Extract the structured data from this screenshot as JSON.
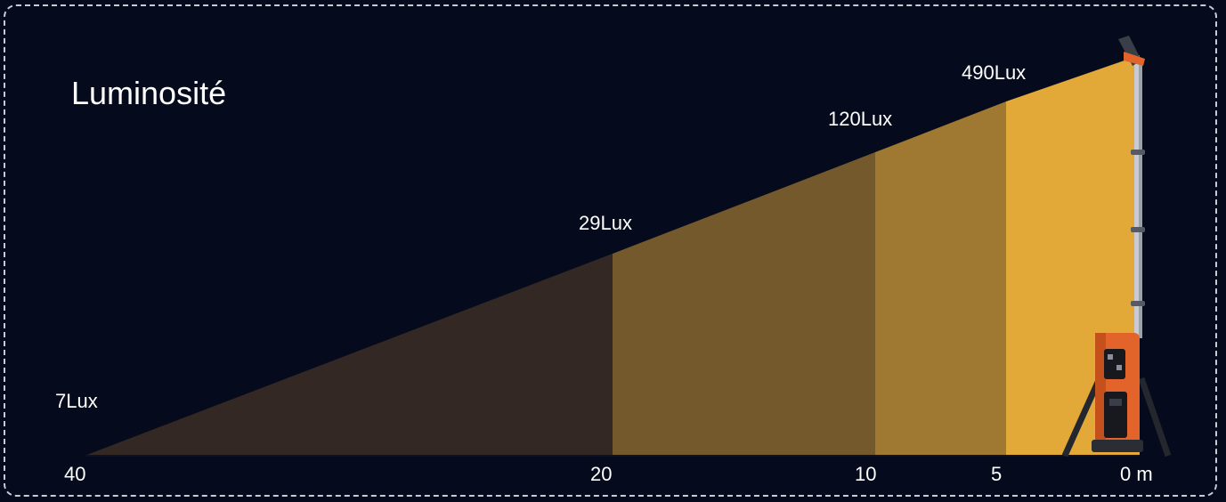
{
  "title": "Luminosité",
  "zones": [
    {
      "lux_label": "7Lux",
      "distance_label": "40",
      "distance_m": 40,
      "color": "#342824"
    },
    {
      "lux_label": "29Lux",
      "distance_label": "20",
      "distance_m": 20,
      "color": "#74592c"
    },
    {
      "lux_label": "120Lux",
      "distance_label": "10",
      "distance_m": 10,
      "color": "#9f7831"
    },
    {
      "lux_label": "490Lux",
      "distance_label": "5",
      "distance_m": 5,
      "color": "#e2a939"
    }
  ],
  "origin_label": "0 m",
  "colors": {
    "background": "#050b1d",
    "border": "#c9ccd4",
    "light_tower_orange": "#e2642a"
  }
}
